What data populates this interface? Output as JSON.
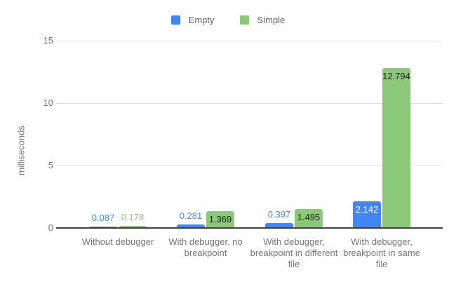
{
  "chart_data": {
    "type": "bar",
    "title": "",
    "xlabel": "",
    "ylabel": "milliseconds",
    "ylim": [
      0,
      15
    ],
    "yticks": [
      0,
      5,
      10,
      15
    ],
    "grid": true,
    "legend_position": "top",
    "categories": [
      "Without debugger",
      "With debugger, no breakpoint",
      "With debugger, breakpoint in different file",
      "With debugger, breakpoint in same file"
    ],
    "series": [
      {
        "name": "Empty",
        "color": "#4285f4",
        "values": [
          0.087,
          0.281,
          0.397,
          2.142
        ],
        "label_color_above": "#4285f4",
        "label_color_inside": "#ffffff"
      },
      {
        "name": "Simple",
        "color": "#8cc87a",
        "values": [
          0.178,
          1.369,
          1.495,
          12.794
        ],
        "label_color_above": "#93c47d",
        "label_color_inside": "#212121"
      }
    ],
    "colors": {
      "axis_text": "#757575",
      "gridline": "#e0e0e0",
      "baseline": "#424242",
      "background": "#ffffff"
    }
  }
}
